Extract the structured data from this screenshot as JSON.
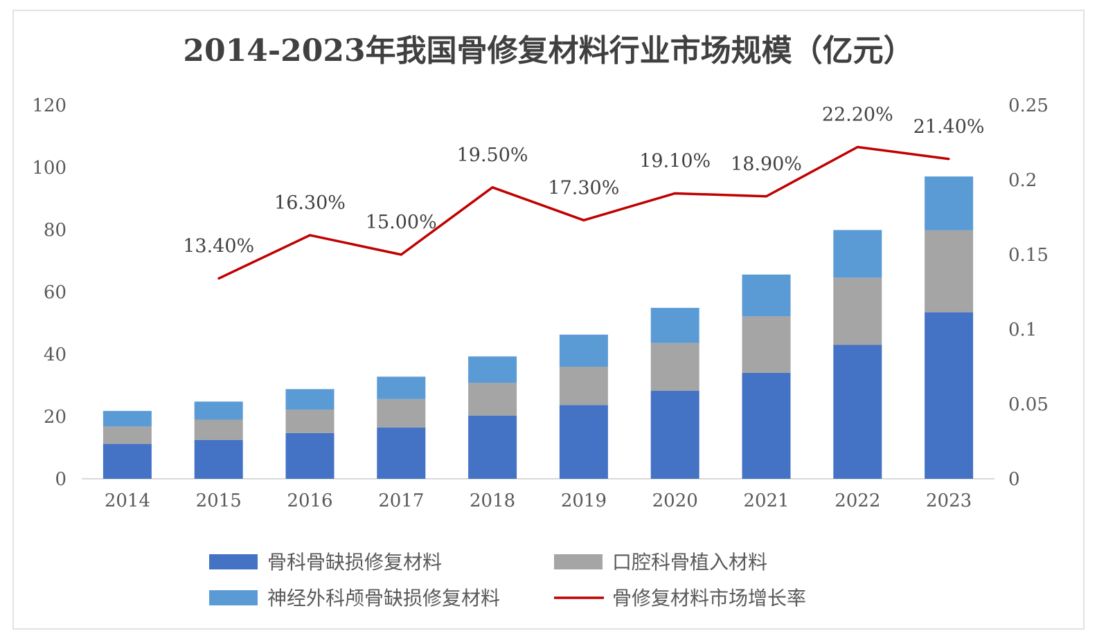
{
  "chart_data": {
    "type": "bar",
    "title": "2014-2023年我国骨修复材料行业市场规模（亿元）",
    "categories": [
      "2014",
      "2015",
      "2016",
      "2017",
      "2018",
      "2019",
      "2020",
      "2021",
      "2022",
      "2023"
    ],
    "ylim": [
      0,
      120
    ],
    "yticks": [
      "0",
      "20",
      "40",
      "60",
      "80",
      "100",
      "120"
    ],
    "y2lim": [
      0,
      0.25
    ],
    "y2ticks": [
      "0",
      "0.05",
      "0.1",
      "0.15",
      "0.2",
      "0.25"
    ],
    "legend_position": "bottom",
    "grid": false,
    "series": [
      {
        "name": "骨科骨缺损修复材料",
        "kind": "bar",
        "color": "#4472C4",
        "values": [
          11.2,
          12.5,
          14.7,
          16.5,
          20.3,
          23.7,
          28.3,
          34,
          43,
          53.5
        ]
      },
      {
        "name": "口腔科骨植入材料",
        "kind": "bar",
        "color": "#A5A5A5",
        "values": [
          5.6,
          6.5,
          7.5,
          9.1,
          10.5,
          12.3,
          15.3,
          18.2,
          21.6,
          26.3
        ]
      },
      {
        "name": "神经外科颅骨缺损修复材料",
        "kind": "bar",
        "color": "#5B9BD5",
        "values": [
          5,
          5.8,
          6.6,
          7.2,
          8.5,
          10.3,
          11.3,
          13.4,
          15.3,
          17.3
        ]
      },
      {
        "name": "骨修复材料市场增长率",
        "kind": "line",
        "axis": "right",
        "color": "#C00000",
        "values": [
          null,
          0.134,
          0.163,
          0.15,
          0.195,
          0.173,
          0.191,
          0.189,
          0.222,
          0.214
        ],
        "labels": [
          "",
          "13.40%",
          "16.30%",
          "15.00%",
          "19.50%",
          "17.30%",
          "19.10%",
          "18.90%",
          "22.20%",
          "21.40%"
        ]
      }
    ]
  }
}
